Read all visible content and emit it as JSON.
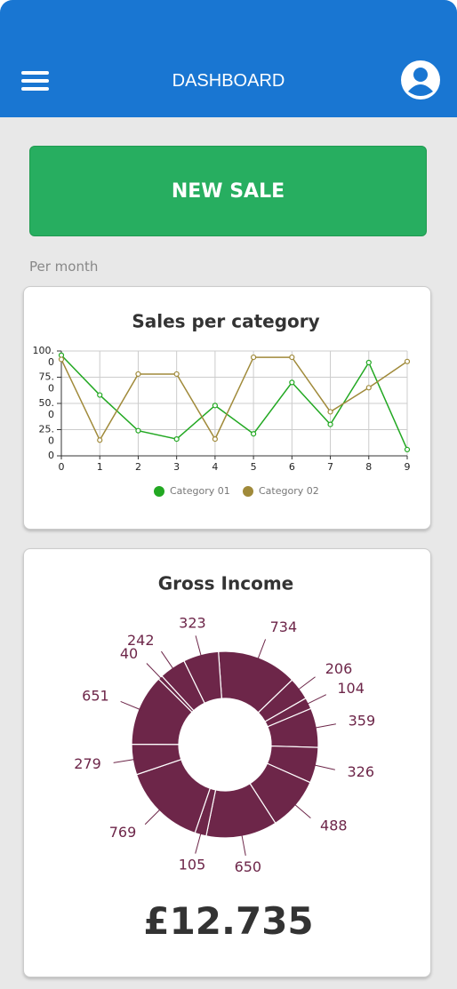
{
  "header": {
    "title": "DASHBOARD"
  },
  "button": {
    "label": "NEW SALE"
  },
  "section_label": "Per month",
  "chart_data": [
    {
      "type": "line",
      "title": "Sales per category",
      "x": [
        0,
        1,
        2,
        3,
        4,
        5,
        6,
        7,
        8,
        9
      ],
      "xlim": [
        0,
        9
      ],
      "xticks": [
        0,
        1,
        2,
        3,
        4,
        5,
        6,
        7,
        8,
        9
      ],
      "ylim": [
        0,
        100
      ],
      "yticks": [
        {
          "value": 100,
          "label": "100.0"
        },
        {
          "value": 75,
          "label": "75.0"
        },
        {
          "value": 50,
          "label": "50.0"
        },
        {
          "value": 25,
          "label": "25.0"
        },
        0
      ],
      "grid": true,
      "series": [
        {
          "name": "Category 01",
          "color": "#22a822",
          "values": [
            96,
            58,
            24,
            16,
            48,
            21,
            70,
            30,
            89,
            6
          ]
        },
        {
          "name": "Category 02",
          "color": "#a08a3a",
          "values": [
            92,
            15,
            78,
            78,
            16,
            94,
            94,
            42,
            65,
            90
          ]
        }
      ]
    },
    {
      "type": "pie",
      "title": "Gross Income",
      "color": "#6d2649",
      "values": [
        734,
        206,
        104,
        359,
        326,
        488,
        650,
        105,
        769,
        279,
        651,
        40,
        242,
        323
      ]
    }
  ],
  "total": "£12.735"
}
